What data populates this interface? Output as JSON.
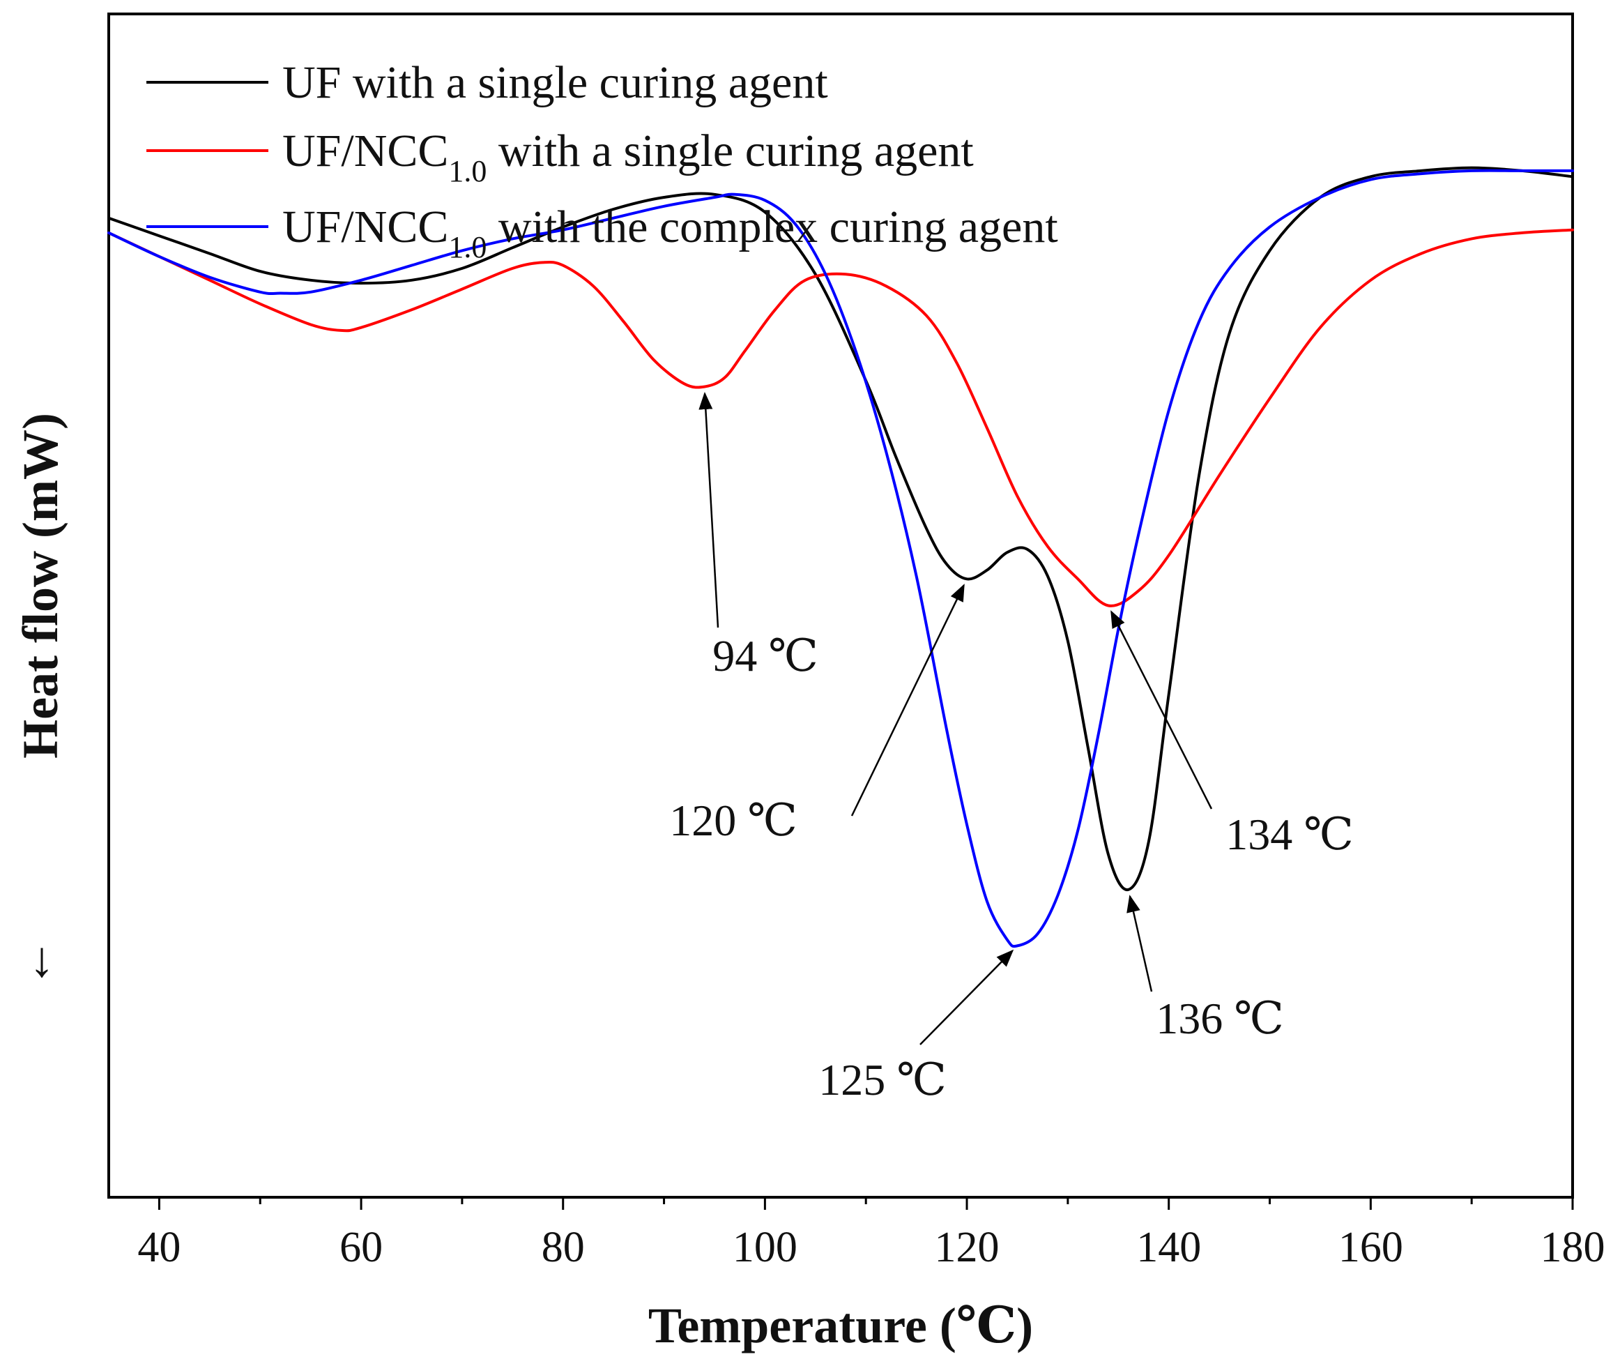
{
  "chart_data": {
    "type": "line",
    "title": "",
    "xlabel": "Temperature (℃)",
    "ylabel": "Heat flow (mW)",
    "ylabel_arrow": "↓",
    "xlim": [
      35,
      180
    ],
    "ylim": [
      -1.0,
      1.0
    ],
    "xticks": [
      40,
      60,
      80,
      100,
      120,
      140,
      160,
      180
    ],
    "x_minor_step": 10,
    "y_ticks_shown": false,
    "legend": {
      "placement": "top-left",
      "entries": [
        {
          "text": "UF with a single curing agent",
          "base": "",
          "sub": "",
          "rest": ""
        },
        {
          "text": "",
          "base": "UF/NCC",
          "sub": "1.0",
          "rest": " with a single curing agent"
        },
        {
          "text": "",
          "base": "UF/NCC",
          "sub": "1.0",
          "rest": " with the complex curing agent"
        }
      ]
    },
    "series": [
      {
        "name": "UF with a single curing agent",
        "color": "#000000",
        "x": [
          35,
          40,
          45,
          50,
          55,
          60,
          65,
          70,
          75,
          80,
          85,
          90,
          95,
          100,
          105,
          110,
          113,
          116,
          118,
          120,
          122,
          124,
          126,
          128,
          130,
          132,
          134,
          136,
          138,
          140,
          143,
          146,
          150,
          155,
          160,
          165,
          170,
          175,
          180
        ],
        "y": [
          0.655,
          0.625,
          0.595,
          0.565,
          0.55,
          0.545,
          0.55,
          0.57,
          0.605,
          0.64,
          0.67,
          0.69,
          0.695,
          0.665,
          0.56,
          0.38,
          0.25,
          0.13,
          0.07,
          0.045,
          0.06,
          0.09,
          0.095,
          0.05,
          -0.06,
          -0.24,
          -0.42,
          -0.48,
          -0.4,
          -0.15,
          0.22,
          0.46,
          0.6,
          0.69,
          0.725,
          0.735,
          0.74,
          0.735,
          0.725
        ]
      },
      {
        "name": "UF/NCC1.0 with a single curing agent",
        "color": "#ff0000",
        "x": [
          35,
          40,
          45,
          50,
          55,
          58,
          60,
          65,
          70,
          75,
          78,
          80,
          83,
          86,
          89,
          92,
          94,
          96,
          98,
          101,
          104,
          108,
          112,
          116,
          119,
          122,
          125,
          128,
          131,
          134,
          137,
          140,
          145,
          150,
          155,
          160,
          165,
          170,
          175,
          180
        ],
        "y": [
          0.63,
          0.59,
          0.55,
          0.51,
          0.475,
          0.465,
          0.47,
          0.5,
          0.535,
          0.57,
          0.58,
          0.575,
          0.54,
          0.48,
          0.415,
          0.375,
          0.37,
          0.385,
          0.43,
          0.5,
          0.55,
          0.56,
          0.54,
          0.49,
          0.41,
          0.3,
          0.185,
          0.1,
          0.045,
          0.0,
          0.025,
          0.085,
          0.22,
          0.35,
          0.47,
          0.55,
          0.595,
          0.62,
          0.63,
          0.635
        ]
      },
      {
        "name": "UF/NCC1.0 with the complex curing agent",
        "color": "#0000ff",
        "x": [
          35,
          40,
          45,
          50,
          52,
          55,
          60,
          65,
          70,
          75,
          80,
          85,
          90,
          95,
          97,
          100,
          103,
          106,
          109,
          112,
          115,
          118,
          120,
          122,
          124,
          125,
          127,
          129,
          131,
          133,
          135,
          137,
          140,
          143,
          146,
          150,
          155,
          160,
          165,
          170,
          175,
          180
        ],
        "y": [
          0.63,
          0.59,
          0.555,
          0.53,
          0.528,
          0.53,
          0.55,
          0.575,
          0.6,
          0.62,
          0.635,
          0.655,
          0.675,
          0.69,
          0.695,
          0.685,
          0.645,
          0.56,
          0.43,
          0.26,
          0.05,
          -0.21,
          -0.37,
          -0.5,
          -0.565,
          -0.575,
          -0.555,
          -0.49,
          -0.38,
          -0.22,
          -0.04,
          0.12,
          0.33,
          0.48,
          0.57,
          0.64,
          0.69,
          0.72,
          0.73,
          0.735,
          0.735,
          0.735
        ]
      }
    ],
    "annotations": [
      {
        "text": "94 ℃",
        "arrow_to": {
          "x": 94,
          "y": 0.37
        }
      },
      {
        "text": "120 ℃",
        "arrow_to": {
          "x": 120,
          "y": 0.045
        }
      },
      {
        "text": "125 ℃",
        "arrow_to": {
          "x": 125,
          "y": -0.575
        }
      },
      {
        "text": "134 ℃",
        "arrow_to": {
          "x": 134,
          "y": 0.0
        }
      },
      {
        "text": "136 ℃",
        "arrow_to": {
          "x": 136,
          "y": -0.48
        }
      }
    ]
  }
}
